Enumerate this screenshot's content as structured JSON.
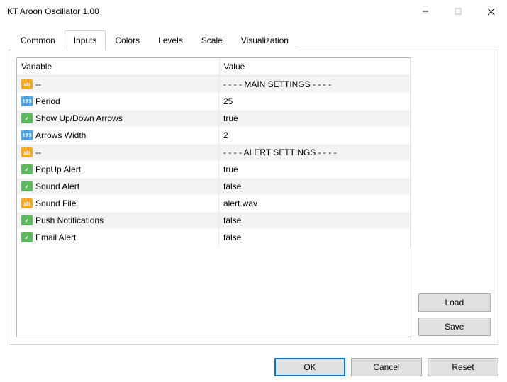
{
  "window": {
    "title": "KT Aroon Oscillator 1.00"
  },
  "tabs": {
    "items": [
      "Common",
      "Inputs",
      "Colors",
      "Levels",
      "Scale",
      "Visualization"
    ],
    "active_index": 1
  },
  "table": {
    "headers": {
      "variable": "Variable",
      "value": "Value"
    },
    "rows": [
      {
        "icon_type": "string",
        "icon_text": "ab",
        "variable": "--",
        "value": "- - - - MAIN SETTINGS - - - -"
      },
      {
        "icon_type": "int",
        "icon_text": "123",
        "variable": "Period",
        "value": "25"
      },
      {
        "icon_type": "bool",
        "icon_text": "✓",
        "variable": "Show Up/Down Arrows",
        "value": "true"
      },
      {
        "icon_type": "int",
        "icon_text": "123",
        "variable": "Arrows Width",
        "value": "2"
      },
      {
        "icon_type": "string",
        "icon_text": "ab",
        "variable": "--",
        "value": "- - - - ALERT SETTINGS - - - -"
      },
      {
        "icon_type": "bool",
        "icon_text": "✓",
        "variable": "PopUp Alert",
        "value": "true"
      },
      {
        "icon_type": "bool",
        "icon_text": "✓",
        "variable": "Sound Alert",
        "value": "false"
      },
      {
        "icon_type": "string",
        "icon_text": "ab",
        "variable": "Sound File",
        "value": "alert.wav"
      },
      {
        "icon_type": "bool",
        "icon_text": "✓",
        "variable": "Push Notifications",
        "value": "false"
      },
      {
        "icon_type": "bool",
        "icon_text": "✓",
        "variable": "Email Alert",
        "value": "false"
      }
    ]
  },
  "side_buttons": {
    "load": "Load",
    "save": "Save"
  },
  "footer_buttons": {
    "ok": "OK",
    "cancel": "Cancel",
    "reset": "Reset"
  },
  "colors": {
    "string_icon": "#f5a623",
    "int_icon": "#4aa3e8",
    "bool_icon": "#5cb85c",
    "row_alt": "#f3f3f3",
    "border": "#d0d0d0",
    "primary": "#0078d7"
  }
}
